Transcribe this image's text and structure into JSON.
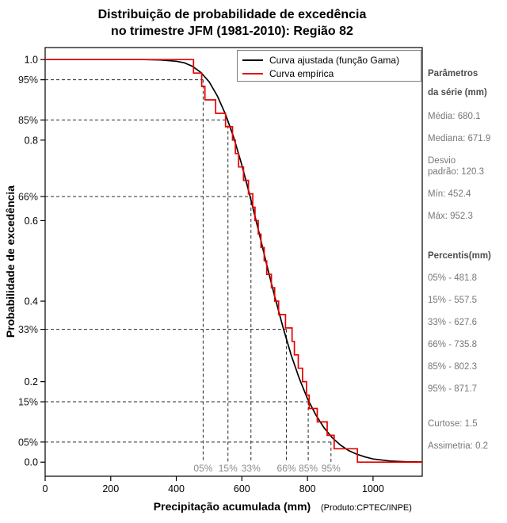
{
  "title": {
    "line1": "Distribuição de probabilidade de excedência",
    "line2": "no trimestre JFM (1981-2010): Região 82"
  },
  "legend": {
    "items": [
      {
        "label": "Curva ajustada (função Gama)",
        "color": "#000000"
      },
      {
        "label": "Curva empírica",
        "color": "#e60000"
      }
    ]
  },
  "axes": {
    "x_label": "Precipitação acumulada (mm)",
    "y_label": "Probabilidade de excedência",
    "x_ticks": [
      0,
      200,
      400,
      600,
      800,
      1000
    ],
    "y_ticks": [
      "0.0",
      "0.2",
      "0.4",
      "0.6",
      "0.8",
      "1.0"
    ],
    "x_range": [
      0,
      1150
    ],
    "y_range": [
      0,
      1
    ]
  },
  "product_note": "(Produto:CPTEC/INPE)",
  "stats_panel": {
    "series_header": [
      "Parâmetros",
      "da série (mm)"
    ],
    "series_stats": [
      "Média: 680.1",
      "Mediana: 671.9",
      "Desvio\npadrão: 120.3",
      "Mín: 452.4",
      "Máx: 952.3"
    ],
    "percentiles_header": "Percentis(mm)",
    "percentile_stats": [
      "05% - 481.8",
      "15% - 557.5",
      "33% - 627.6",
      "66% - 735.8",
      "85% - 802.3",
      "95% - 871.7"
    ],
    "shape_stats": [
      "Curtose: 1.5",
      "Assimetria: 0.2"
    ]
  },
  "chart_data": {
    "type": "line",
    "title": "Distribuição de probabilidade de excedência no trimestre JFM (1981-2010): Região 82",
    "xlabel": "Precipitação acumulada (mm)",
    "ylabel": "Probabilidade de excedência",
    "xlim": [
      0,
      1150
    ],
    "ylim": [
      0,
      1
    ],
    "grid": false,
    "legend_position": "top-right",
    "series": [
      {
        "name": "Curva ajustada (função Gama)",
        "type": "line",
        "color": "#000000",
        "x": [
          0,
          200,
          300,
          350,
          400,
          425,
          450,
          475,
          500,
          525,
          550,
          575,
          600,
          625,
          650,
          675,
          700,
          725,
          750,
          775,
          800,
          825,
          850,
          875,
          900,
          925,
          950,
          975,
          1000,
          1050,
          1100,
          1150
        ],
        "y": [
          1.0,
          1.0,
          1.0,
          0.999,
          0.996,
          0.992,
          0.983,
          0.968,
          0.945,
          0.91,
          0.864,
          0.807,
          0.738,
          0.66,
          0.578,
          0.493,
          0.412,
          0.336,
          0.267,
          0.208,
          0.158,
          0.118,
          0.086,
          0.061,
          0.043,
          0.029,
          0.02,
          0.013,
          0.008,
          0.003,
          0.001,
          0.0005
        ]
      },
      {
        "name": "Curva empírica",
        "type": "step-exceedance",
        "color": "#e60000",
        "values": [
          452.4,
          477.3,
          487.3,
          520,
          550,
          571.4,
          580,
          590,
          605,
          620,
          633.3,
          640,
          650,
          658,
          668,
          675.8,
          690,
          700,
          712,
          733,
          753,
          760,
          772,
          785,
          797,
          805.2,
          830,
          860,
          881.3,
          952.3
        ]
      }
    ],
    "percentiles": [
      {
        "pct_label": "05%",
        "value": 481.8,
        "prob_level": 0.95,
        "prob_label": "95%"
      },
      {
        "pct_label": "15%",
        "value": 557.5,
        "prob_level": 0.85,
        "prob_label": "85%"
      },
      {
        "pct_label": "33%",
        "value": 627.6,
        "prob_level": 0.66,
        "prob_label": "66%"
      },
      {
        "pct_label": "66%",
        "value": 735.8,
        "prob_level": 0.33,
        "prob_label": "33%"
      },
      {
        "pct_label": "85%",
        "value": 802.3,
        "prob_level": 0.15,
        "prob_label": "15%"
      },
      {
        "pct_label": "95%",
        "value": 871.7,
        "prob_level": 0.05,
        "prob_label": "05%"
      }
    ],
    "stats": {
      "media": 680.1,
      "mediana": 671.9,
      "desvio_padrao": 120.3,
      "min": 452.4,
      "max": 952.3,
      "curtose": 1.5,
      "assimetria": 0.2
    }
  }
}
